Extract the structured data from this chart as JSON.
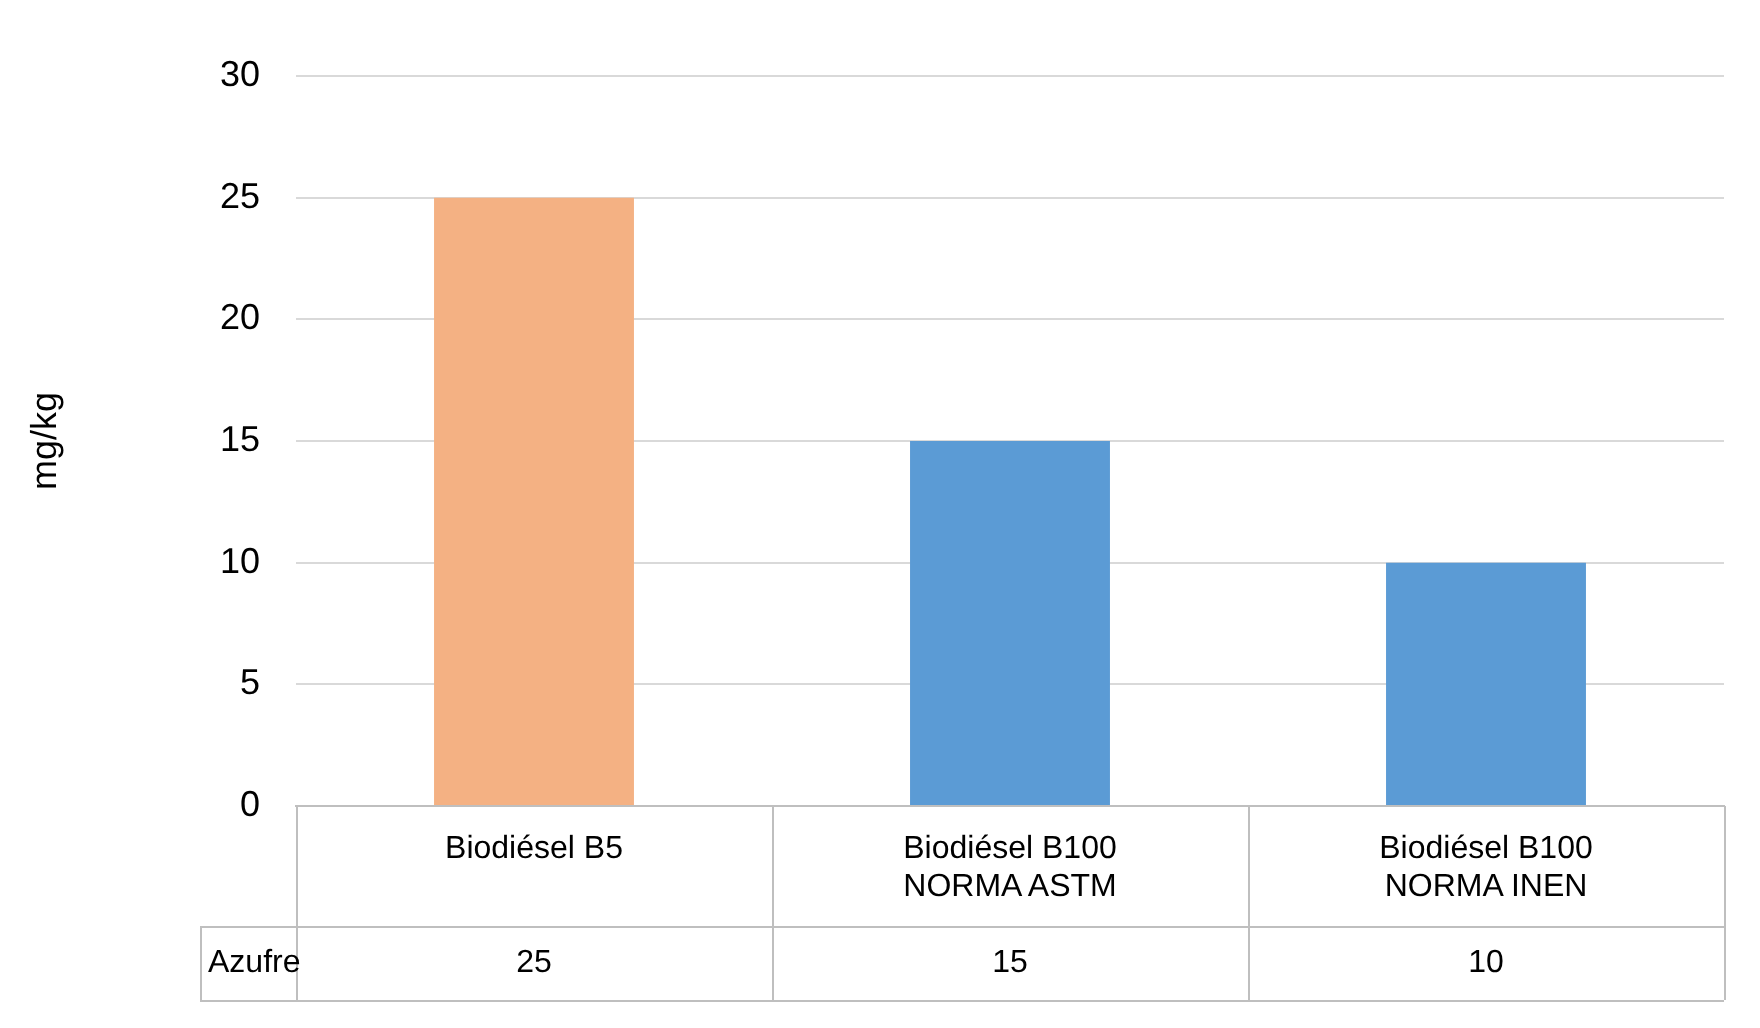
{
  "chart_data": {
    "type": "bar",
    "ylabel": "mg/kg",
    "categories": [
      "Biodiésel B5",
      "Biodiésel B100 NORMA ASTM",
      "Biodiésel B100 NORMA INEN"
    ],
    "series": [
      {
        "name": "Azufre",
        "colors": [
          "#f4b183",
          "#5b9bd5",
          "#5b9bd5"
        ],
        "values": [
          25,
          15,
          10
        ]
      }
    ],
    "ylim": [
      0,
      30
    ],
    "yticks": [
      0,
      5,
      10,
      15,
      20,
      25,
      30
    ],
    "grid": "y",
    "legend": false,
    "data_labels": true
  }
}
